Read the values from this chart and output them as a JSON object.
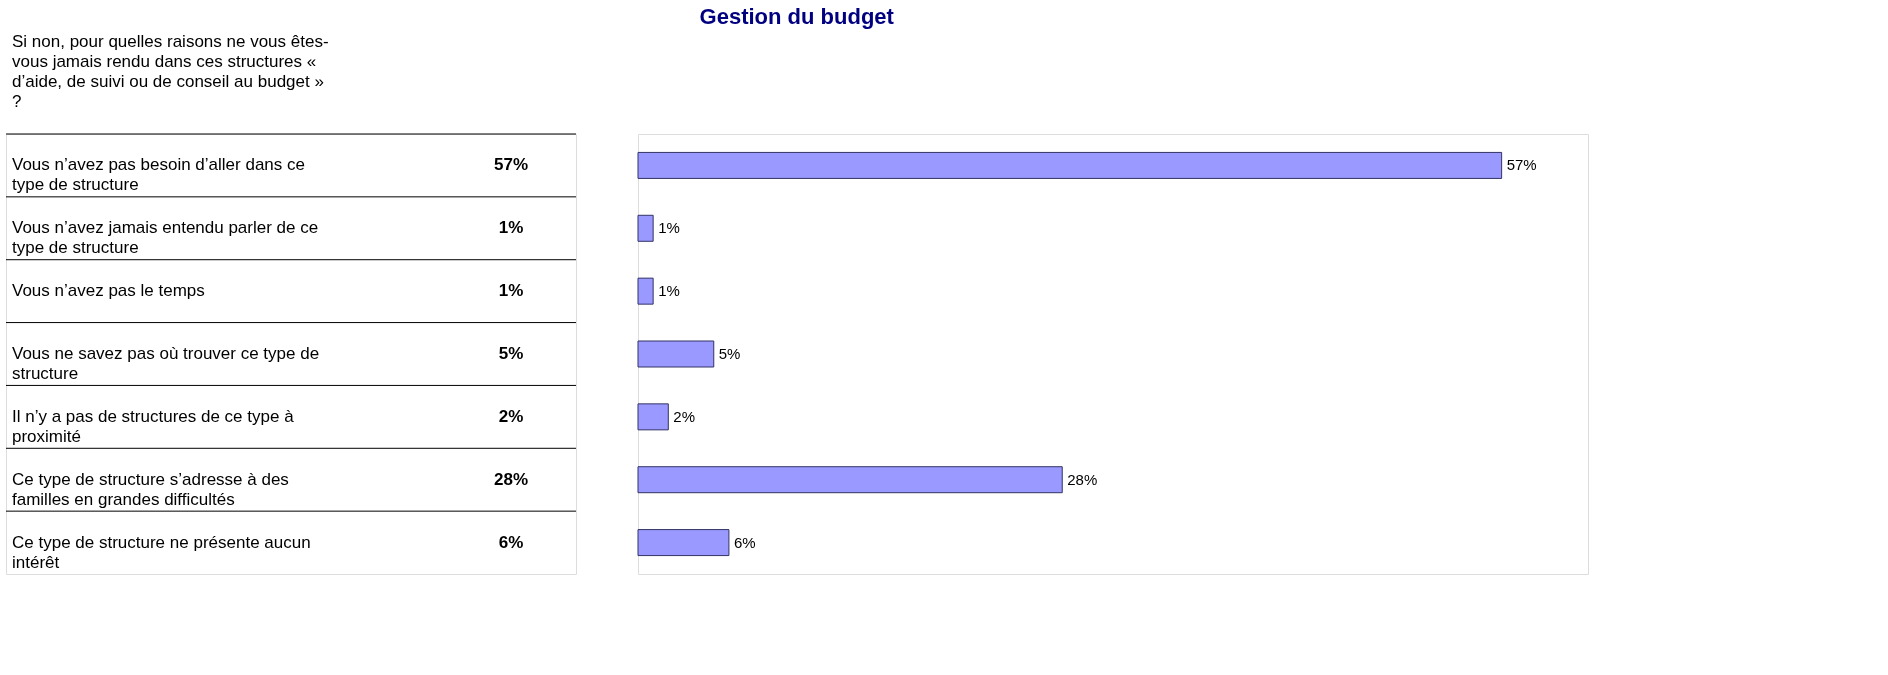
{
  "chart_data": {
    "type": "bar",
    "orientation": "horizontal",
    "title": "Gestion du budget",
    "ylabel": "Si non, pour quelles raisons ne vous êtes-vous jamais rendu dans ces structures « d’aide, de suivi ou de conseil au budget » ?",
    "categories": [
      "Vous n’avez pas besoin d’aller dans ce type de structure",
      "Vous n’avez jamais entendu parler de ce type de structure",
      "Vous n’avez pas le temps",
      "Vous ne savez pas où trouver ce type de structure",
      "Il n’y a pas de structures de ce type à proximité",
      "Ce type de structure s’adresse à des familles en grandes difficultés",
      "Ce type de structure ne présente aucun intérêt"
    ],
    "values": [
      57,
      1,
      1,
      5,
      2,
      28,
      6
    ],
    "value_labels": [
      "57%",
      "1%",
      "1%",
      "5%",
      "2%",
      "28%",
      "6%"
    ],
    "color": "#9999ff"
  }
}
